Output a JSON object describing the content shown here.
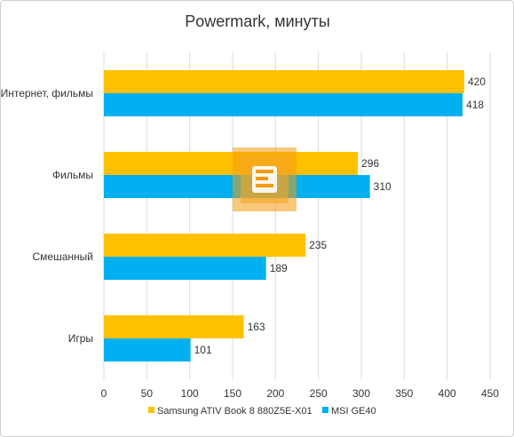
{
  "chart_data": {
    "type": "bar",
    "orientation": "horizontal",
    "title": "Powermark, минуты",
    "categories": [
      "Интернет, фильмы",
      "Фильмы",
      "Смешанный",
      "Игры"
    ],
    "series": [
      {
        "name": "Samsung ATIV Book 8 880Z5E-X01",
        "color": "#ffc000",
        "values": [
          420,
          296,
          235,
          163
        ]
      },
      {
        "name": "MSI GE40",
        "color": "#00b0f0",
        "values": [
          418,
          310,
          189,
          101
        ]
      }
    ],
    "xlim": [
      0,
      450
    ],
    "xticks": [
      0,
      50,
      100,
      150,
      200,
      250,
      300,
      350,
      400,
      450
    ],
    "grid": true,
    "legend_position": "bottom",
    "watermark_color": "#f39c12",
    "xlabel": "",
    "ylabel": ""
  }
}
